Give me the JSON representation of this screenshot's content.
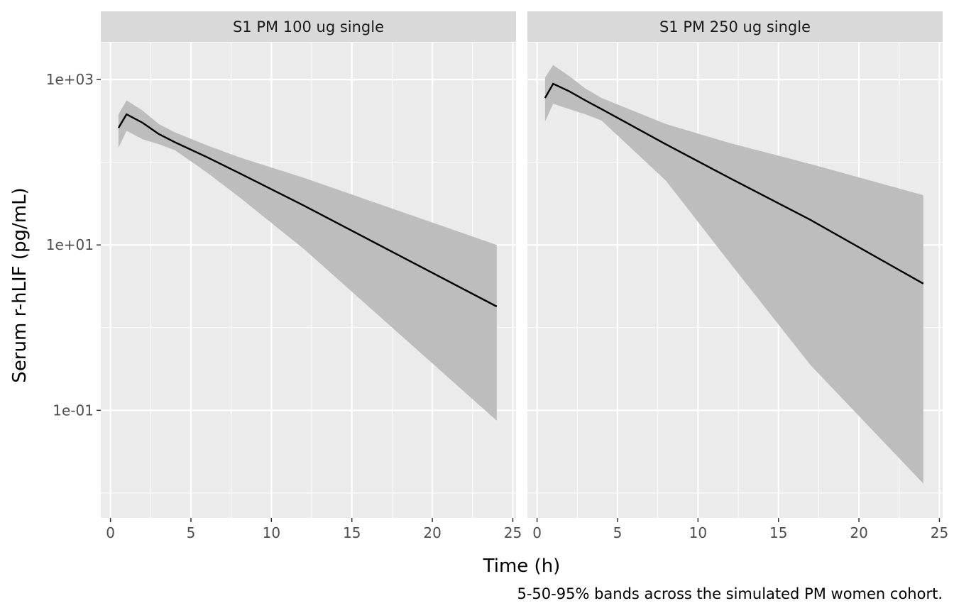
{
  "chart_data": {
    "type": "line",
    "facet_titles": [
      "S1 PM 100 ug single",
      "S1 PM 250 ug single"
    ],
    "xlabel": "Time (h)",
    "ylabel": "Serum r-hLIF (pg/mL)",
    "caption": "5-50-95% bands across the simulated PM women cohort.",
    "y_scale": "log10",
    "xlim": [
      -0.6,
      25.2
    ],
    "ylim": [
      0.005,
      2800
    ],
    "x_ticks": [
      0,
      5,
      10,
      15,
      20,
      25
    ],
    "x_tick_labels": [
      "0",
      "5",
      "10",
      "15",
      "20",
      "25"
    ],
    "y_ticks": [
      0.1,
      10,
      1000
    ],
    "y_tick_labels": [
      "1e-01",
      "1e+01",
      "1e+03"
    ],
    "grid": true,
    "colors": {
      "panel_bg": "#ebebeb",
      "strip_bg": "#d9d9d9",
      "grid": "#ffffff",
      "band": "#bdbdbd",
      "median_line": "#000000",
      "tick": "#333333"
    },
    "panels": [
      {
        "title": "S1 PM 100 ug single",
        "x": [
          0.5,
          1,
          2,
          3,
          4,
          6,
          8,
          12,
          24
        ],
        "median": [
          260,
          380,
          300,
          220,
          175,
          115,
          74,
          30,
          1.8
        ],
        "p5": [
          150,
          240,
          190,
          165,
          140,
          75,
          38,
          9,
          0.075
        ],
        "p95": [
          380,
          560,
          420,
          290,
          230,
          160,
          115,
          65,
          10
        ]
      },
      {
        "title": "S1 PM 250 ug single",
        "x": [
          0.5,
          1,
          2,
          3,
          4,
          8,
          12,
          17,
          24
        ],
        "median": [
          600,
          890,
          720,
          560,
          440,
          165,
          64,
          20,
          3.4
        ],
        "p5": [
          310,
          510,
          440,
          380,
          320,
          60,
          6,
          0.35,
          0.013
        ],
        "p95": [
          1060,
          1500,
          1100,
          780,
          600,
          290,
          170,
          95,
          40
        ]
      }
    ]
  }
}
